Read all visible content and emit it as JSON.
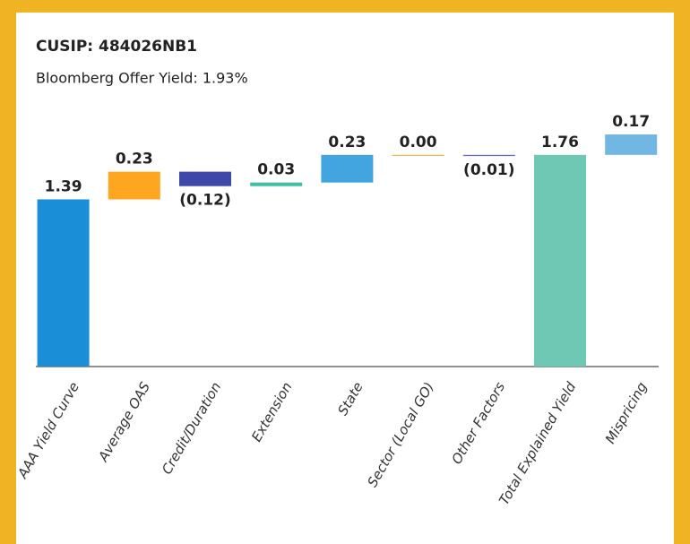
{
  "chart_data": {
    "type": "waterfall",
    "title": "CUSIP: 484026NB1",
    "subtitle": "Bloomberg Offer Yield: 1.93%",
    "categories": [
      "AAA Yield Curve",
      "Average OAS",
      "Credit/Duration",
      "Extension",
      "State",
      "Sector (Local GO)",
      "Other Factors",
      "Total Explained Yield",
      "Mispricing"
    ],
    "measures": [
      "absolute",
      "relative",
      "relative",
      "relative",
      "relative",
      "relative",
      "relative",
      "total",
      "relative"
    ],
    "values": [
      1.39,
      0.23,
      -0.12,
      0.03,
      0.23,
      0.0,
      -0.01,
      1.76,
      0.17
    ],
    "value_labels": [
      "1.39",
      "0.23",
      "(0.12)",
      "0.03",
      "0.23",
      "0.00",
      "(0.01)",
      "1.76",
      "0.17"
    ],
    "colors": [
      "#1a8fd8",
      "#ffa620",
      "#3f48a8",
      "#3dbfa0",
      "#42a5e0",
      "#f5a623",
      "#6b6bc8",
      "#6fc8b4",
      "#72b6e4"
    ]
  }
}
